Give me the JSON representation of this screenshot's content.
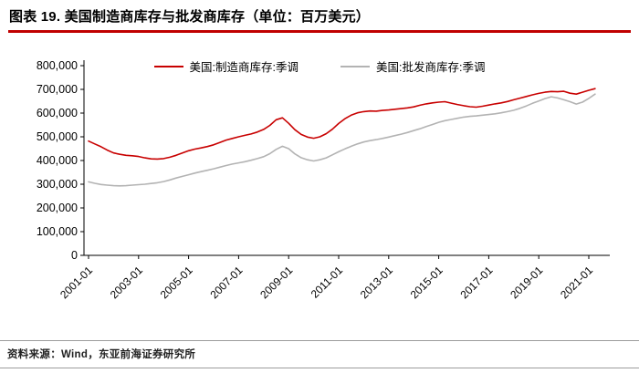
{
  "header": {
    "title": "图表 19. 美国制造商库存与批发商库存（单位：百万美元）",
    "accent_color": "#c00000"
  },
  "footer": {
    "source": "资料来源：Wind，东亚前海证券研究所"
  },
  "chart_data": {
    "type": "line",
    "title": "美国制造商库存与批发商库存",
    "unit": "百万美元",
    "xlabel": "",
    "ylabel": "",
    "ylim": [
      0,
      800000
    ],
    "y_tick_step": 100000,
    "grid": false,
    "legend_position": "top-center",
    "x_ticks": [
      "2001-01",
      "2003-01",
      "2005-01",
      "2007-01",
      "2009-01",
      "2011-01",
      "2013-01",
      "2015-01",
      "2017-01",
      "2019-01",
      "2021-01"
    ],
    "x_tick_years": [
      2001,
      2003,
      2005,
      2007,
      2009,
      2011,
      2013,
      2015,
      2017,
      2019,
      2021
    ],
    "series": [
      {
        "name": "美国:制造商库存:季调",
        "color": "#c80000",
        "x_start": 2001,
        "x_step": 0.25,
        "values": [
          482000,
          470000,
          458000,
          444000,
          432000,
          426000,
          422000,
          420000,
          417000,
          411000,
          407000,
          406000,
          408000,
          414000,
          422000,
          432000,
          441000,
          448000,
          453000,
          459000,
          466000,
          476000,
          486000,
          493000,
          500000,
          506000,
          512000,
          520000,
          531000,
          548000,
          572000,
          580000,
          557000,
          530000,
          510000,
          499000,
          494000,
          500000,
          513000,
          532000,
          556000,
          576000,
          591000,
          601000,
          606000,
          609000,
          608000,
          611000,
          613000,
          616000,
          619000,
          622000,
          626000,
          633000,
          639000,
          643000,
          646000,
          648000,
          642000,
          636000,
          631000,
          627000,
          625000,
          629000,
          634000,
          639000,
          643000,
          649000,
          656000,
          663000,
          670000,
          677000,
          683000,
          688000,
          691000,
          690000,
          692000,
          684000,
          680000,
          688000,
          696000,
          703000
        ]
      },
      {
        "name": "美国:批发商库存:季调",
        "color": "#b3b3b3",
        "x_start": 2001,
        "x_step": 0.25,
        "values": [
          310000,
          304000,
          299000,
          296000,
          294000,
          293000,
          294000,
          296000,
          298000,
          300000,
          303000,
          306000,
          311000,
          318000,
          326000,
          333000,
          340000,
          347000,
          353000,
          359000,
          365000,
          372000,
          379000,
          385000,
          390000,
          395000,
          401000,
          408000,
          416000,
          429000,
          447000,
          460000,
          450000,
          428000,
          412000,
          403000,
          398000,
          403000,
          411000,
          424000,
          437000,
          449000,
          460000,
          470000,
          478000,
          484000,
          488000,
          493000,
          499000,
          505000,
          511000,
          518000,
          526000,
          534000,
          543000,
          552000,
          561000,
          568000,
          573000,
          578000,
          583000,
          586000,
          588000,
          591000,
          594000,
          597000,
          601000,
          606000,
          612000,
          620000,
          630000,
          641000,
          651000,
          661000,
          669000,
          664000,
          656000,
          648000,
          638000,
          646000,
          662000,
          680000
        ]
      }
    ]
  }
}
